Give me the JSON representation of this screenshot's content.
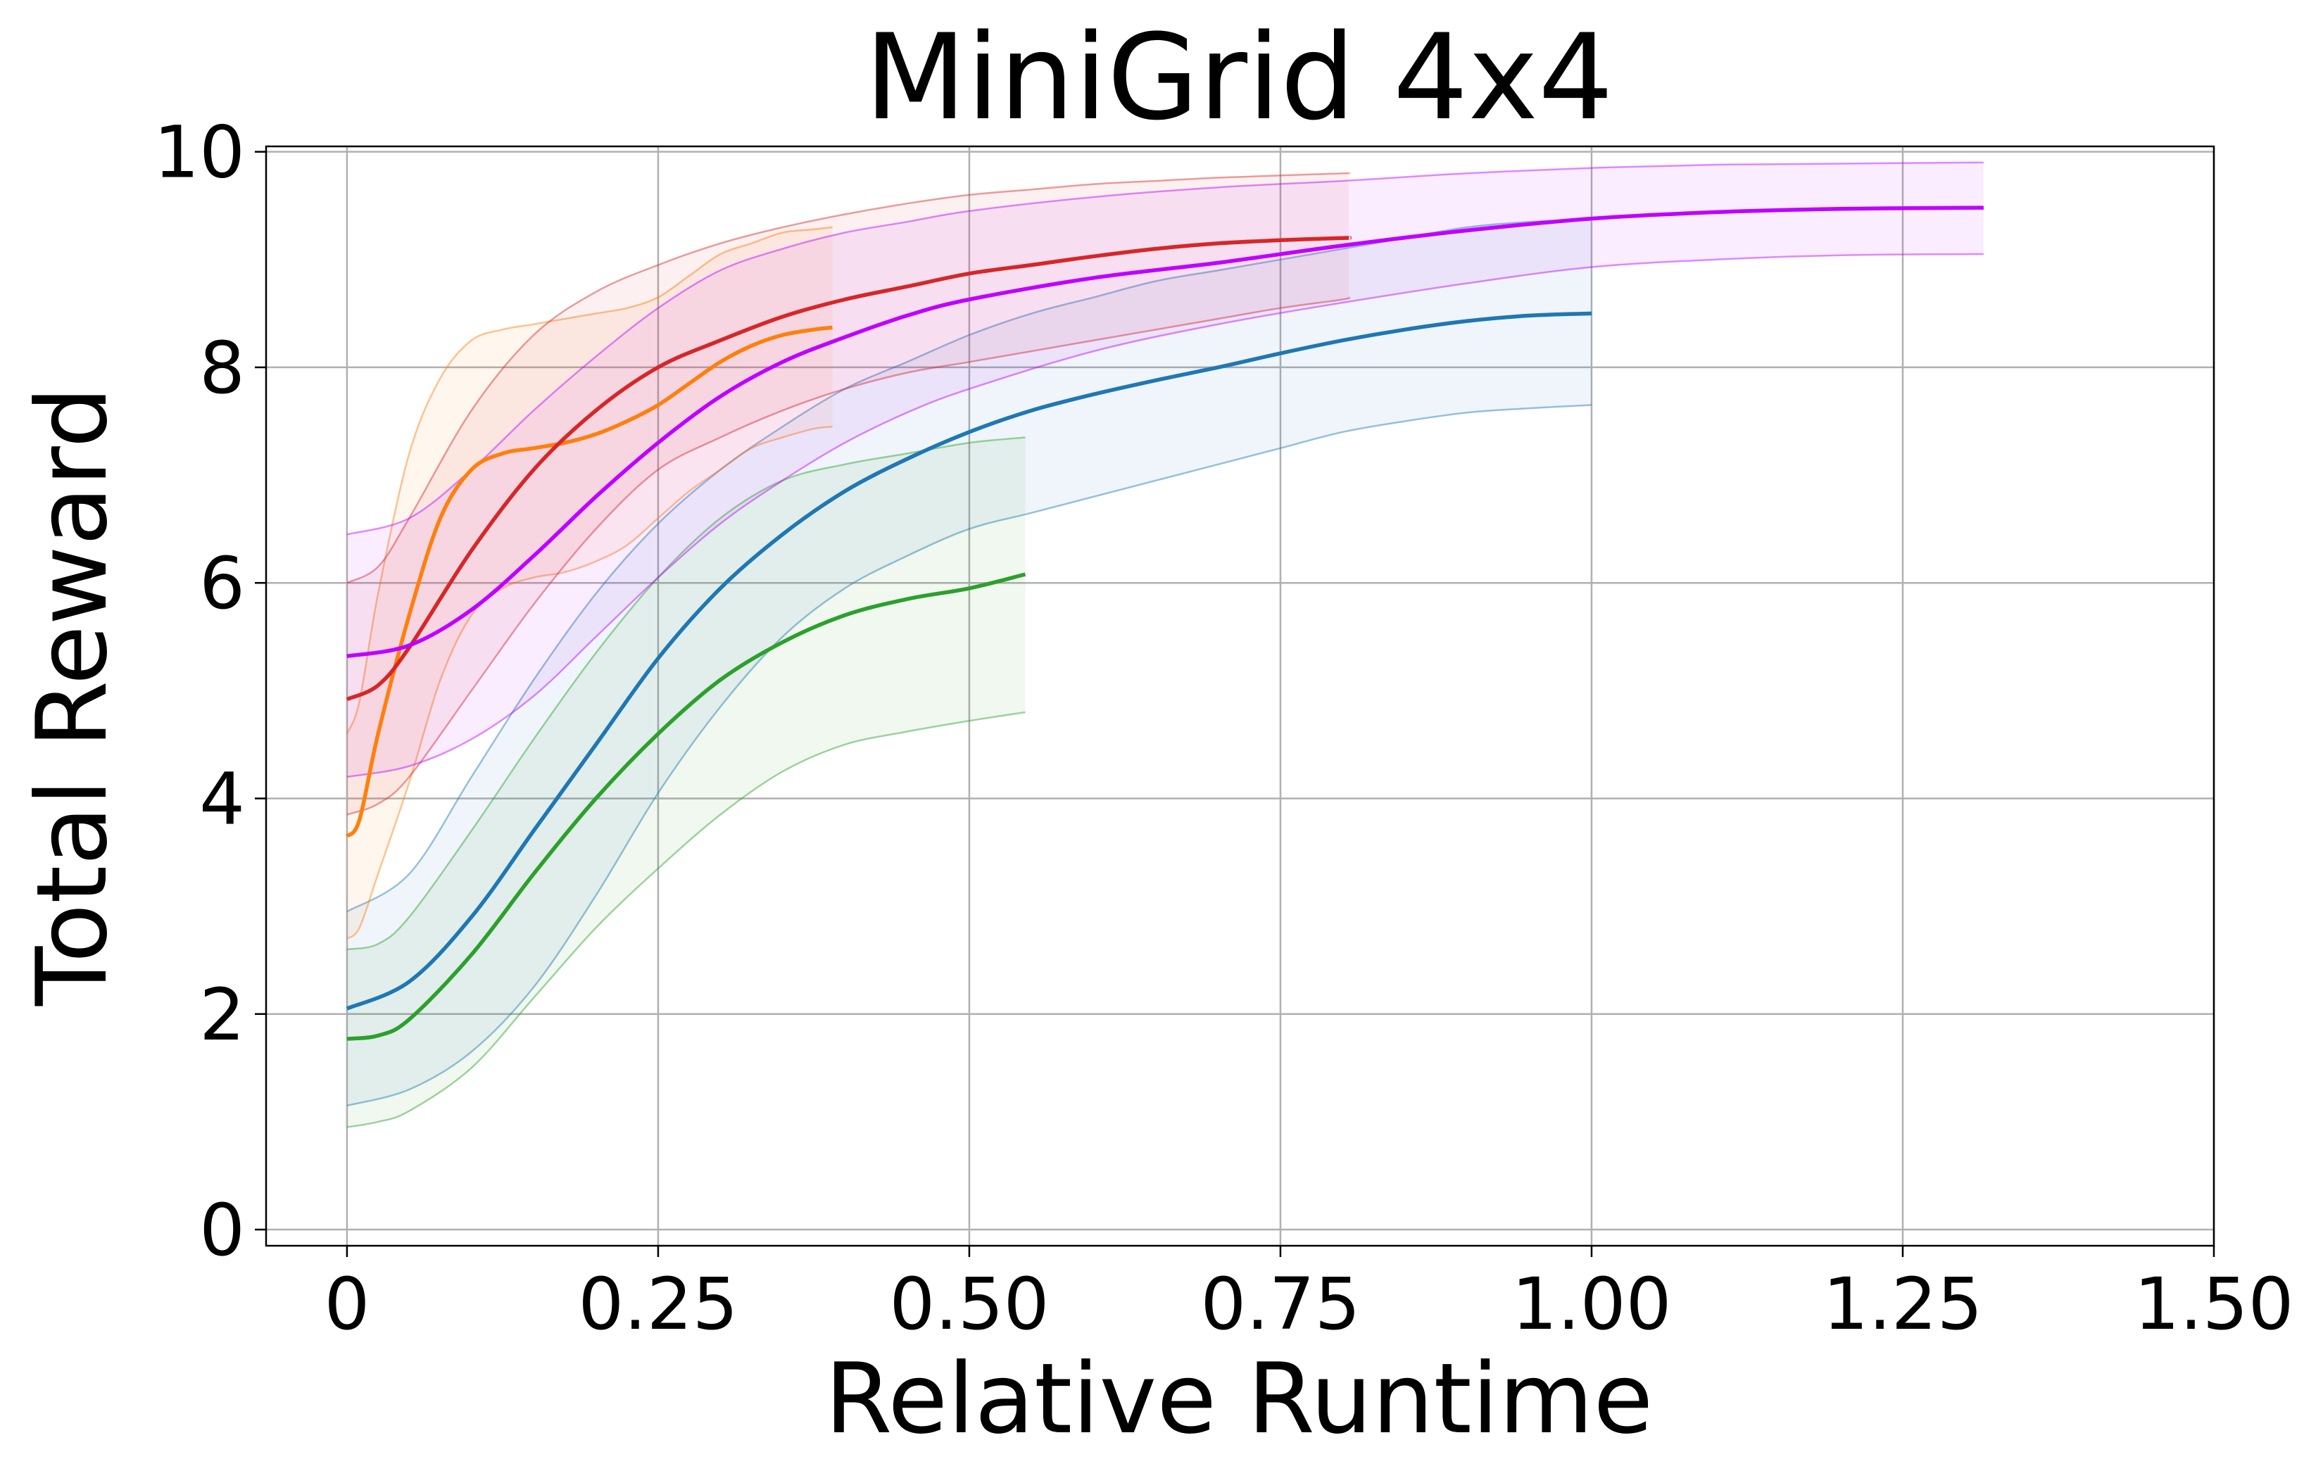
{
  "chart_data": {
    "type": "line",
    "title": "MiniGrid 4x4",
    "xlabel": "Relative Runtime",
    "ylabel": "Total Reward",
    "xlim": [
      -0.065,
      1.5
    ],
    "ylim": [
      -0.15,
      10.05
    ],
    "xticks": [
      0,
      0.25,
      0.5,
      0.75,
      1.0,
      1.25,
      1.5
    ],
    "xtick_labels": [
      "0",
      "0.25",
      "0.50",
      "0.75",
      "1.00",
      "1.25",
      "1.50"
    ],
    "yticks": [
      0,
      2,
      4,
      6,
      8,
      10
    ],
    "ytick_labels": [
      "0",
      "2",
      "4",
      "6",
      "8",
      "10"
    ],
    "grid": true,
    "series": [
      {
        "color": "#1f77b4",
        "x": [
          0,
          0.05,
          0.1,
          0.15,
          0.2,
          0.25,
          0.3,
          0.35,
          0.4,
          0.45,
          0.5,
          0.55,
          0.6,
          0.65,
          0.7,
          0.75,
          0.8,
          0.85,
          0.9,
          0.95,
          1.0
        ],
        "y": [
          2.05,
          2.3,
          2.9,
          3.7,
          4.5,
          5.3,
          5.95,
          6.45,
          6.85,
          7.15,
          7.4,
          7.6,
          7.75,
          7.88,
          8.0,
          8.13,
          8.25,
          8.35,
          8.43,
          8.48,
          8.5
        ],
        "upper": [
          2.95,
          3.3,
          4.2,
          5.1,
          5.9,
          6.55,
          7.05,
          7.45,
          7.8,
          8.05,
          8.3,
          8.5,
          8.65,
          8.8,
          8.9,
          9.0,
          9.1,
          9.2,
          9.3,
          9.35,
          9.37
        ],
        "lower": [
          1.15,
          1.3,
          1.65,
          2.25,
          3.1,
          4.05,
          4.85,
          5.5,
          5.95,
          6.25,
          6.5,
          6.65,
          6.8,
          6.95,
          7.1,
          7.25,
          7.4,
          7.5,
          7.58,
          7.62,
          7.65
        ]
      },
      {
        "color": "#ff7f0e",
        "x": [
          0,
          0.01,
          0.025,
          0.05,
          0.075,
          0.1,
          0.125,
          0.15,
          0.175,
          0.2,
          0.225,
          0.25,
          0.275,
          0.3,
          0.325,
          0.35,
          0.375,
          0.39
        ],
        "y": [
          3.65,
          3.8,
          4.6,
          5.7,
          6.6,
          7.05,
          7.2,
          7.25,
          7.3,
          7.38,
          7.5,
          7.65,
          7.85,
          8.05,
          8.2,
          8.3,
          8.35,
          8.37
        ],
        "upper": [
          4.6,
          4.9,
          5.9,
          7.2,
          7.9,
          8.25,
          8.35,
          8.4,
          8.45,
          8.5,
          8.55,
          8.65,
          8.85,
          9.05,
          9.15,
          9.25,
          9.28,
          9.3
        ],
        "lower": [
          2.7,
          2.8,
          3.3,
          4.15,
          5.1,
          5.7,
          5.95,
          6.05,
          6.1,
          6.2,
          6.35,
          6.6,
          6.85,
          7.05,
          7.25,
          7.35,
          7.43,
          7.45
        ]
      },
      {
        "color": "#2ca02c",
        "x": [
          0,
          0.025,
          0.05,
          0.1,
          0.15,
          0.2,
          0.25,
          0.3,
          0.35,
          0.4,
          0.45,
          0.5,
          0.545
        ],
        "y": [
          1.77,
          1.8,
          1.95,
          2.55,
          3.3,
          4.0,
          4.6,
          5.1,
          5.45,
          5.7,
          5.85,
          5.95,
          6.08
        ],
        "upper": [
          2.6,
          2.65,
          2.9,
          3.7,
          4.55,
          5.35,
          6.05,
          6.6,
          6.95,
          7.1,
          7.2,
          7.3,
          7.35
        ],
        "lower": [
          0.95,
          1.0,
          1.1,
          1.5,
          2.15,
          2.8,
          3.35,
          3.85,
          4.25,
          4.5,
          4.62,
          4.72,
          4.8
        ]
      },
      {
        "color": "#d62728",
        "x": [
          0,
          0.025,
          0.05,
          0.1,
          0.15,
          0.2,
          0.25,
          0.3,
          0.35,
          0.4,
          0.45,
          0.5,
          0.55,
          0.6,
          0.65,
          0.7,
          0.75,
          0.8,
          0.805
        ],
        "y": [
          4.92,
          5.05,
          5.4,
          6.3,
          7.05,
          7.6,
          8.0,
          8.25,
          8.47,
          8.63,
          8.75,
          8.87,
          8.95,
          9.03,
          9.1,
          9.15,
          9.18,
          9.2,
          9.2
        ],
        "upper": [
          6.0,
          6.15,
          6.6,
          7.6,
          8.3,
          8.7,
          8.95,
          9.15,
          9.3,
          9.42,
          9.52,
          9.6,
          9.65,
          9.7,
          9.73,
          9.76,
          9.78,
          9.8,
          9.8
        ],
        "lower": [
          3.85,
          3.95,
          4.2,
          5.0,
          5.8,
          6.5,
          7.05,
          7.35,
          7.6,
          7.8,
          7.95,
          8.05,
          8.15,
          8.25,
          8.35,
          8.45,
          8.55,
          8.63,
          8.65
        ]
      },
      {
        "color": "#bf00ff",
        "x": [
          0,
          0.05,
          0.1,
          0.15,
          0.2,
          0.25,
          0.3,
          0.35,
          0.4,
          0.45,
          0.5,
          0.6,
          0.7,
          0.8,
          0.9,
          1.0,
          1.1,
          1.2,
          1.3,
          1.315
        ],
        "y": [
          5.32,
          5.42,
          5.75,
          6.25,
          6.8,
          7.3,
          7.73,
          8.05,
          8.28,
          8.48,
          8.63,
          8.83,
          8.97,
          9.13,
          9.27,
          9.38,
          9.44,
          9.47,
          9.48,
          9.48
        ],
        "upper": [
          6.45,
          6.6,
          7.05,
          7.6,
          8.1,
          8.55,
          8.9,
          9.1,
          9.25,
          9.35,
          9.45,
          9.58,
          9.67,
          9.73,
          9.8,
          9.85,
          9.88,
          9.89,
          9.9,
          9.9
        ],
        "lower": [
          4.2,
          4.3,
          4.55,
          4.95,
          5.5,
          6.05,
          6.55,
          6.95,
          7.3,
          7.58,
          7.8,
          8.15,
          8.4,
          8.6,
          8.78,
          8.93,
          9.0,
          9.04,
          9.05,
          9.05
        ]
      }
    ]
  }
}
